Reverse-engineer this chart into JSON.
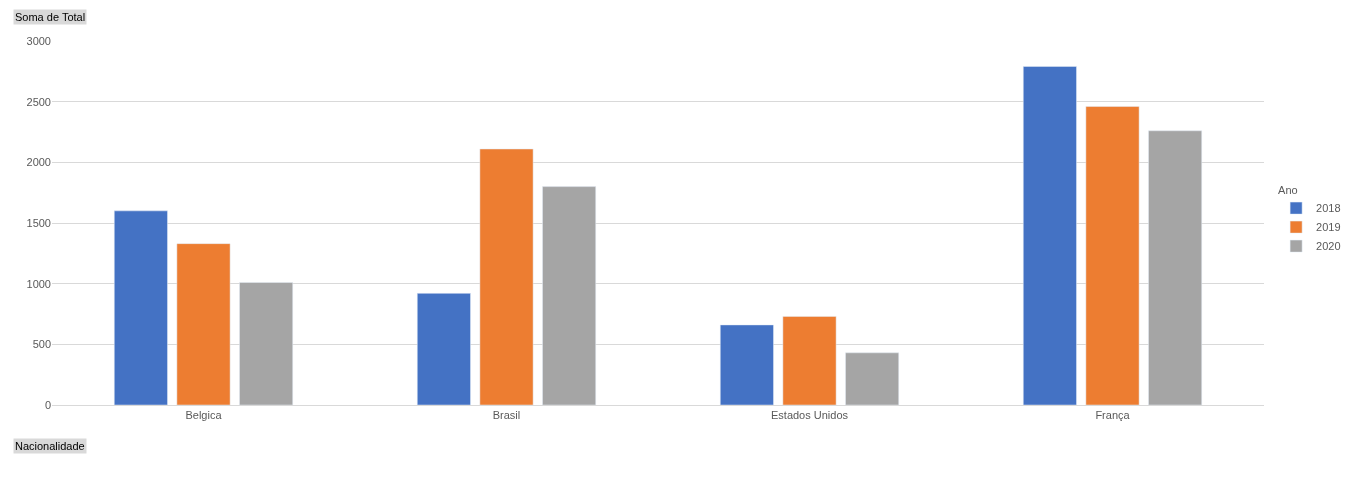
{
  "chart_data": {
    "type": "bar",
    "xlabel": "Nacionalidade",
    "ylabel": "Soma de Total",
    "legend_title": "Ano",
    "categories": [
      "Belgica",
      "Brasil",
      "Estados Unidos",
      "França"
    ],
    "series": [
      {
        "name": "2018",
        "color": "#4472c4",
        "values": [
          1600,
          920,
          660,
          2790
        ]
      },
      {
        "name": "2019",
        "color": "#ed7d31",
        "values": [
          1330,
          2110,
          730,
          2460
        ]
      },
      {
        "name": "2020",
        "color": "#a5a5a5",
        "values": [
          1010,
          1800,
          430,
          2260
        ]
      }
    ],
    "ylim": [
      0,
      3000
    ],
    "yticks": [
      0,
      500,
      1000,
      1500,
      2000,
      2500,
      3000
    ],
    "grid": "y",
    "legend": "right"
  }
}
